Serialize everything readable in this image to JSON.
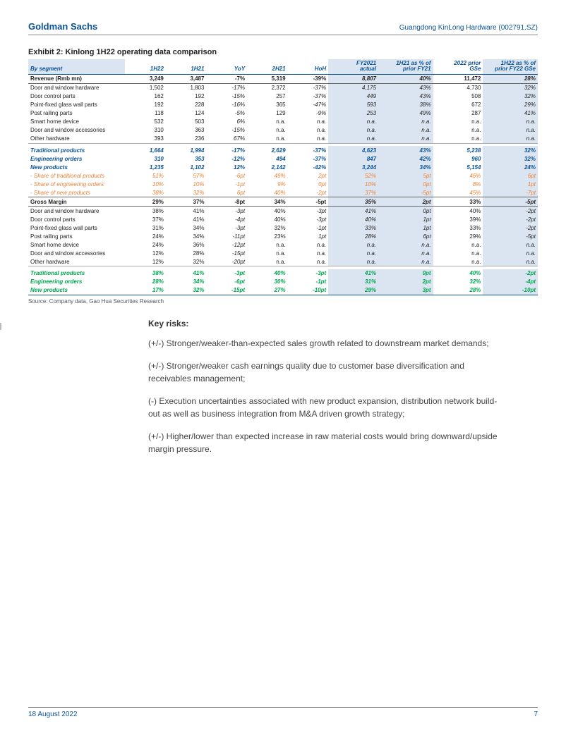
{
  "header": {
    "brand": "Goldman Sachs",
    "doc": "Guangdong KinLong Hardware (002791.SZ)"
  },
  "exhibit_title": "Exhibit 2: Kinlong 1H22 operating data comparison",
  "columns": [
    "By segment",
    "1H22",
    "1H21",
    "YoY",
    "2H21",
    "HoH",
    "FY2021 actual",
    "1H21 as % of prior FY21",
    "2022 prior GSe",
    "1H22 as % of prior FY22 GSe"
  ],
  "sections": [
    {
      "type": "section",
      "cells": [
        "Revenue (Rmb mn)",
        "3,249",
        "3,487",
        "-7%",
        "5,319",
        "-39%",
        "8,807",
        "40%",
        "11,472",
        "28%"
      ]
    },
    {
      "type": "plain",
      "cells": [
        "Door and window hardware",
        "1,502",
        "1,803",
        "-17%",
        "2,372",
        "-37%",
        "4,175",
        "43%",
        "4,730",
        "32%"
      ]
    },
    {
      "type": "plain",
      "cells": [
        "Door control parts",
        "162",
        "192",
        "-15%",
        "257",
        "-37%",
        "449",
        "43%",
        "508",
        "32%"
      ]
    },
    {
      "type": "plain",
      "cells": [
        "Point-fixed glass wall parts",
        "192",
        "228",
        "-16%",
        "365",
        "-47%",
        "593",
        "38%",
        "672",
        "29%"
      ]
    },
    {
      "type": "plain",
      "cells": [
        "Post railing parts",
        "118",
        "124",
        "-5%",
        "129",
        "-9%",
        "253",
        "49%",
        "287",
        "41%"
      ]
    },
    {
      "type": "plain",
      "cells": [
        "Smart home device",
        "532",
        "503",
        "6%",
        "n.a.",
        "n.a.",
        "n.a.",
        "n.a.",
        "n.a.",
        "n.a."
      ]
    },
    {
      "type": "plain",
      "cells": [
        "Door and window accessories",
        "310",
        "363",
        "-15%",
        "n.a.",
        "n.a.",
        "n.a.",
        "n.a.",
        "n.a.",
        "n.a."
      ]
    },
    {
      "type": "plain",
      "cells": [
        "Other hardware",
        "393",
        "236",
        "67%",
        "n.a.",
        "n.a.",
        "n.a.",
        "n.a.",
        "n.a.",
        "n.a."
      ]
    },
    {
      "type": "spacer"
    },
    {
      "type": "blue",
      "cells": [
        "Traditional products",
        "1,664",
        "1,994",
        "-17%",
        "2,629",
        "-37%",
        "4,623",
        "43%",
        "5,238",
        "32%"
      ]
    },
    {
      "type": "blue",
      "cells": [
        "Engineering orders",
        "310",
        "353",
        "-12%",
        "494",
        "-37%",
        "847",
        "42%",
        "960",
        "32%"
      ]
    },
    {
      "type": "blue",
      "cells": [
        "New products",
        "1,235",
        "1,102",
        "12%",
        "2,142",
        "-42%",
        "3,244",
        "34%",
        "5,154",
        "24%"
      ]
    },
    {
      "type": "orange",
      "cells": [
        "- Share of traditional products",
        "51%",
        "57%",
        "-6pt",
        "49%",
        "2pt",
        "52%",
        "5pt",
        "46%",
        "6pt"
      ]
    },
    {
      "type": "orange",
      "cells": [
        "- Share of engineering orders",
        "10%",
        "10%",
        "-1pt",
        "9%",
        "0pt",
        "10%",
        "0pt",
        "8%",
        "1pt"
      ]
    },
    {
      "type": "orange",
      "cells": [
        "- Share of new products",
        "38%",
        "32%",
        "6pt",
        "40%",
        "-2pt",
        "37%",
        "-5pt",
        "45%",
        "-7pt"
      ]
    },
    {
      "type": "section",
      "cells": [
        "Gross Margin",
        "29%",
        "37%",
        "-8pt",
        "34%",
        "-5pt",
        "35%",
        "2pt",
        "33%",
        "-5pt"
      ]
    },
    {
      "type": "plain",
      "cells": [
        "Door and window hardware",
        "38%",
        "41%",
        "-3pt",
        "40%",
        "-3pt",
        "41%",
        "0pt",
        "40%",
        "-2pt"
      ]
    },
    {
      "type": "plain",
      "cells": [
        "Door control parts",
        "37%",
        "41%",
        "-4pt",
        "40%",
        "-3pt",
        "40%",
        "1pt",
        "39%",
        "-2pt"
      ]
    },
    {
      "type": "plain",
      "cells": [
        "Point-fixed glass wall parts",
        "31%",
        "34%",
        "-3pt",
        "32%",
        "-1pt",
        "33%",
        "1pt",
        "33%",
        "-2pt"
      ]
    },
    {
      "type": "plain",
      "cells": [
        "Post railing parts",
        "24%",
        "34%",
        "-11pt",
        "23%",
        "1pt",
        "28%",
        "6pt",
        "29%",
        "-5pt"
      ]
    },
    {
      "type": "plain",
      "cells": [
        "Smart home device",
        "24%",
        "36%",
        "-12pt",
        "n.a.",
        "n.a.",
        "n.a.",
        "n.a.",
        "n.a.",
        "n.a."
      ]
    },
    {
      "type": "plain",
      "cells": [
        "Door and window accessories",
        "12%",
        "28%",
        "-15pt",
        "n.a.",
        "n.a.",
        "n.a.",
        "n.a.",
        "n.a.",
        "n.a."
      ]
    },
    {
      "type": "plain",
      "cells": [
        "Other hardware",
        "12%",
        "32%",
        "-20pt",
        "n.a.",
        "n.a.",
        "n.a.",
        "n.a.",
        "n.a.",
        "n.a."
      ]
    },
    {
      "type": "spacer"
    },
    {
      "type": "green",
      "cells": [
        "Traditional products",
        "38%",
        "41%",
        "-3pt",
        "40%",
        "-3pt",
        "41%",
        "0pt",
        "40%",
        "-2pt"
      ]
    },
    {
      "type": "green",
      "cells": [
        "Engineering orders",
        "28%",
        "34%",
        "-6pt",
        "30%",
        "-1pt",
        "31%",
        "2pt",
        "32%",
        "-4pt"
      ]
    },
    {
      "type": "green bottom",
      "cells": [
        "New products",
        "17%",
        "32%",
        "-15pt",
        "27%",
        "-10pt",
        "29%",
        "3pt",
        "28%",
        "-10pt"
      ]
    }
  ],
  "source": "Source: Company data, Gao Hua Securities Research",
  "body": {
    "heading": "Key risks:",
    "paras": [
      "(+/-) Stronger/weaker-than-expected sales growth related to downstream market demands;",
      "(+/-) Stronger/weaker cash earnings quality due to customer base diversification and receivables management;",
      "(-) Execution uncertainties associated with new product expansion, distribution network build-out as well as business integration from M&A driven growth strategy;",
      "(+/-) Higher/lower than expected increase in raw material costs would bring downward/upside margin pressure."
    ]
  },
  "footer": {
    "date": "18 August 2022",
    "page": "7"
  },
  "style": {
    "highlight_cols": [
      6,
      7,
      9
    ],
    "colors": {
      "brand": "#0b5394",
      "highlight_bg": "#dbe5f1",
      "blue_text": "#0b5394",
      "orange_text": "#e8833a",
      "green_text": "#00a651"
    }
  }
}
